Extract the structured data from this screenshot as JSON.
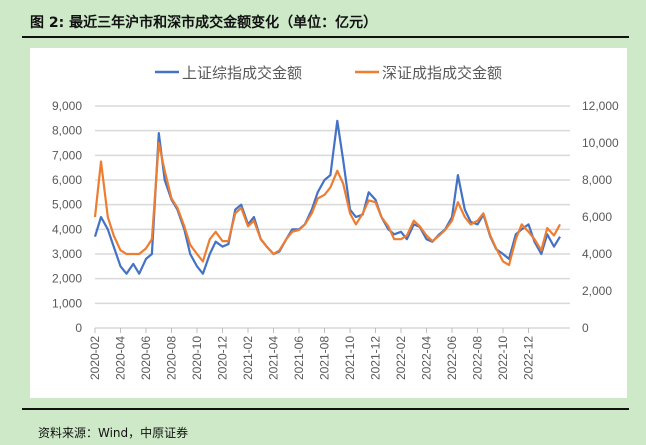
{
  "header": {
    "title": "图 2: 最近三年沪市和深市成交金额变化（单位：亿元）"
  },
  "footer": {
    "source": "资料来源：Wind，中原证券"
  },
  "chart_data": {
    "type": "line",
    "title": "图 2: 最近三年沪市和深市成交金额变化（单位：亿元）",
    "legend_position": "top",
    "grid": true,
    "y_left": {
      "ylim": [
        0,
        9000
      ],
      "ticks": [
        "0",
        "1,000",
        "2,000",
        "3,000",
        "4,000",
        "5,000",
        "6,000",
        "7,000",
        "8,000",
        "9,000"
      ]
    },
    "y_right": {
      "ylim": [
        0,
        12000
      ],
      "ticks": [
        "0",
        "2,000",
        "4,000",
        "6,000",
        "8,000",
        "10,000",
        "12,000"
      ]
    },
    "x_ticks": [
      "2020-02",
      "2020-04",
      "2020-06",
      "2020-08",
      "2020-10",
      "2020-12",
      "2021-02",
      "2021-04",
      "2021-06",
      "2021-08",
      "2021-10",
      "2021-12",
      "2022-02",
      "2022-04",
      "2022-06",
      "2022-08",
      "2022-10",
      "2022-12"
    ],
    "x": [
      "2020-02-01",
      "2020-02-15",
      "2020-03-01",
      "2020-03-15",
      "2020-04-01",
      "2020-04-15",
      "2020-05-01",
      "2020-05-15",
      "2020-06-01",
      "2020-06-15",
      "2020-07-01",
      "2020-07-15",
      "2020-08-01",
      "2020-08-15",
      "2020-09-01",
      "2020-09-15",
      "2020-10-01",
      "2020-10-15",
      "2020-11-01",
      "2020-11-15",
      "2020-12-01",
      "2020-12-15",
      "2021-01-01",
      "2021-01-15",
      "2021-02-01",
      "2021-02-15",
      "2021-03-01",
      "2021-03-15",
      "2021-04-01",
      "2021-04-15",
      "2021-05-01",
      "2021-05-15",
      "2021-06-01",
      "2021-06-15",
      "2021-07-01",
      "2021-07-15",
      "2021-08-01",
      "2021-08-15",
      "2021-09-01",
      "2021-09-15",
      "2021-10-01",
      "2021-10-15",
      "2021-11-01",
      "2021-11-15",
      "2021-12-01",
      "2021-12-15",
      "2022-01-01",
      "2022-01-15",
      "2022-02-01",
      "2022-02-15",
      "2022-03-01",
      "2022-03-15",
      "2022-04-01",
      "2022-04-15",
      "2022-05-01",
      "2022-05-15",
      "2022-06-01",
      "2022-06-15",
      "2022-07-01",
      "2022-07-15",
      "2022-08-01",
      "2022-08-15",
      "2022-09-01",
      "2022-09-15",
      "2022-10-01",
      "2022-10-15",
      "2022-11-01",
      "2022-11-15",
      "2022-12-01",
      "2022-12-15",
      "2023-01-01",
      "2023-01-15",
      "2023-02-01",
      "2023-02-15"
    ],
    "series": [
      {
        "name": "上证综指成交金额",
        "axis": "left",
        "color": "#4472c4",
        "values": [
          3700,
          4500,
          4000,
          3300,
          2500,
          2200,
          2600,
          2200,
          2800,
          3000,
          7900,
          6000,
          5200,
          4800,
          4000,
          3000,
          2500,
          2200,
          3000,
          3500,
          3300,
          3400,
          4800,
          5000,
          4200,
          4500,
          3600,
          3300,
          3000,
          3100,
          3600,
          4000,
          4000,
          4200,
          4800,
          5500,
          6000,
          6200,
          8400,
          6800,
          4800,
          4500,
          4600,
          5500,
          5200,
          4500,
          4000,
          3800,
          3900,
          3600,
          4200,
          4100,
          3600,
          3500,
          3800,
          4000,
          4500,
          6200,
          4800,
          4300,
          4200,
          4600,
          3700,
          3200,
          3000,
          2800,
          3800,
          4000,
          4200,
          3500,
          3000,
          3800,
          3300,
          3700
        ]
      },
      {
        "name": "深证成指成交金额",
        "axis": "right",
        "color": "#ed7d31",
        "values": [
          6000,
          9000,
          6000,
          5000,
          4200,
          4000,
          4000,
          4000,
          4300,
          4800,
          10000,
          8500,
          7000,
          6500,
          5500,
          4500,
          4000,
          3600,
          4800,
          5200,
          4700,
          4700,
          6200,
          6500,
          5500,
          5800,
          4800,
          4400,
          4000,
          4200,
          4800,
          5200,
          5300,
          5600,
          6200,
          7000,
          7200,
          7600,
          8500,
          7800,
          6200,
          5600,
          6200,
          6900,
          6800,
          6000,
          5500,
          4800,
          4800,
          5000,
          5800,
          5500,
          5000,
          4700,
          5000,
          5300,
          5800,
          6800,
          6000,
          5600,
          5800,
          6200,
          5000,
          4300,
          3600,
          3400,
          4800,
          5600,
          5200,
          4800,
          4200,
          5400,
          5000,
          5600
        ]
      }
    ]
  }
}
